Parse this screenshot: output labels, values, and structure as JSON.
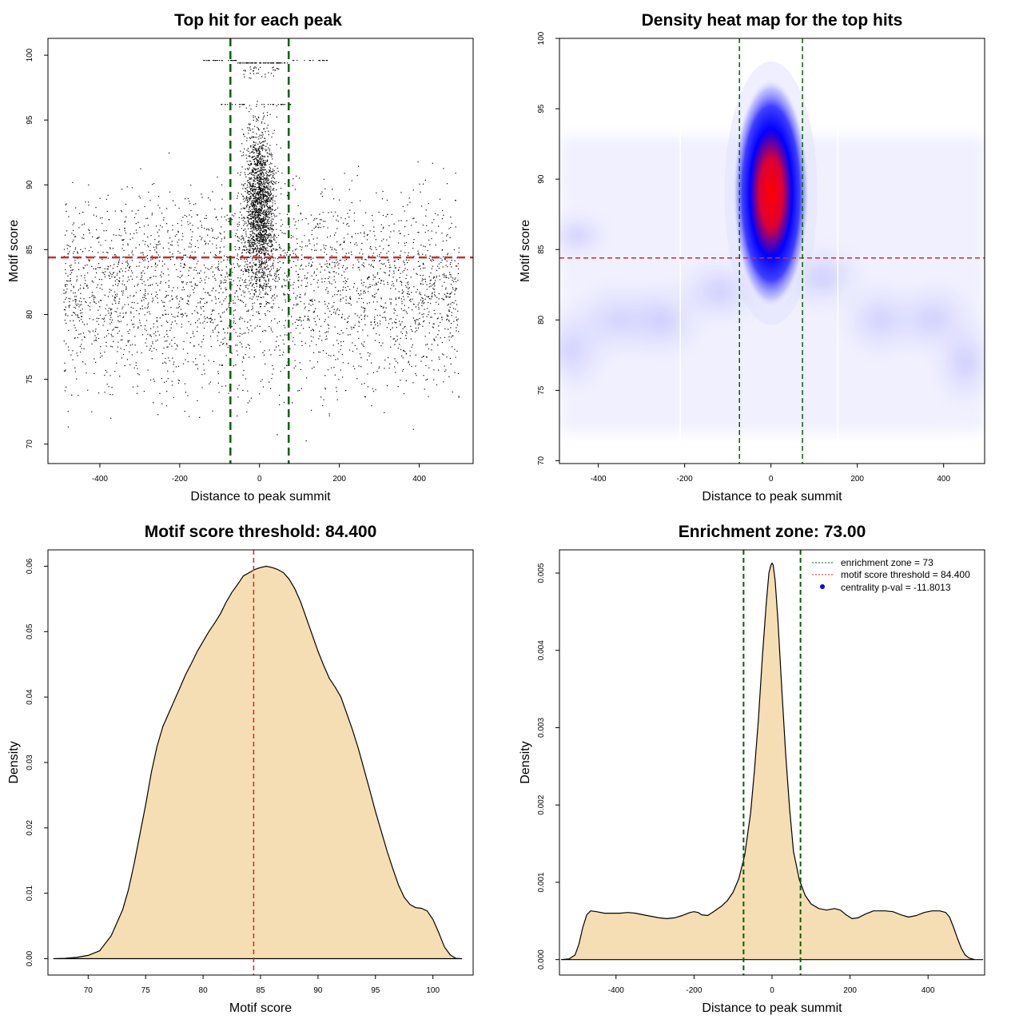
{
  "colors": {
    "threshold_red": "#d62728",
    "zone_green": "#006400",
    "density_fill": "#f5deb3",
    "heat_low": "#ffffff",
    "heat_mid": "#0000ff",
    "heat_high": "#ff0000",
    "points": "#000000",
    "centrality_dot": "#0000ff"
  },
  "chart_data": [
    {
      "type": "scatter",
      "title": "Top hit for each peak",
      "xlabel": "Distance to peak summit",
      "ylabel": "Motif score",
      "xlim": [
        -530,
        535
      ],
      "ylim": [
        68.5,
        101.3
      ],
      "xticks": [
        -400,
        -200,
        0,
        200,
        400
      ],
      "yticks": [
        70,
        75,
        80,
        85,
        90,
        95,
        100
      ],
      "x_range_of_points": [
        -490,
        500
      ],
      "hline": 84.4,
      "vlines": [
        -73,
        73
      ],
      "description_of_points": "about 5000 top hits; dense cluster centered at x=0 (|x|<70) with scores 80-100, elsewhere roughly uniform in x across -490..500 with scores mostly 72-92",
      "grid": false,
      "legend": "none"
    },
    {
      "type": "heatmap",
      "title": "Density heat map for the top hits",
      "xlabel": "Distance to peak summit",
      "ylabel": "Motif score",
      "xlim": [
        -490,
        495
      ],
      "ylim": [
        69.8,
        100
      ],
      "xticks": [
        -400,
        -200,
        0,
        200,
        400
      ],
      "yticks": [
        70,
        75,
        80,
        85,
        90,
        95,
        100
      ],
      "hline": 84.4,
      "vlines": [
        -73,
        73
      ],
      "peak": {
        "x": 0,
        "y": 89
      },
      "colorscale": [
        "white",
        "blue",
        "red"
      ],
      "grid": false,
      "legend": "none"
    },
    {
      "type": "area",
      "title": "Motif score threshold: 84.400",
      "xlabel": "Motif score",
      "ylabel": "Density",
      "xlim": [
        66.5,
        103.5
      ],
      "ylim": [
        -0.0025,
        0.0625
      ],
      "xticks": [
        70,
        75,
        80,
        85,
        90,
        95,
        100
      ],
      "yticks": [
        0.0,
        0.01,
        0.02,
        0.03,
        0.04,
        0.05,
        0.06
      ],
      "ytick_labels": [
        "0.00",
        "0.01",
        "0.02",
        "0.03",
        "0.04",
        "0.05",
        "0.06"
      ],
      "vline": 84.4,
      "x": [
        67,
        68,
        69,
        70,
        71,
        72,
        73,
        73.5,
        74,
        74.5,
        75,
        75.5,
        76,
        76.5,
        77,
        77.5,
        78,
        78.5,
        79,
        79.5,
        80,
        80.5,
        81,
        81.5,
        82,
        82.5,
        83,
        83.5,
        84,
        84.5,
        85,
        85.5,
        86,
        86.5,
        87,
        87.5,
        88,
        88.5,
        89,
        89.5,
        90,
        90.5,
        91,
        91.5,
        92,
        92.5,
        93,
        93.5,
        94,
        94.5,
        95,
        95.5,
        96,
        96.5,
        97,
        97.5,
        98,
        98.5,
        99,
        99.5,
        100,
        100.5,
        101,
        101.5,
        102,
        102.5
      ],
      "y": [
        0.0,
        5e-05,
        0.0002,
        0.0005,
        0.0012,
        0.0035,
        0.0075,
        0.0105,
        0.0145,
        0.019,
        0.0235,
        0.0285,
        0.0325,
        0.0355,
        0.0375,
        0.0395,
        0.0415,
        0.0435,
        0.0452,
        0.047,
        0.0485,
        0.05,
        0.0513,
        0.0527,
        0.0545,
        0.056,
        0.0572,
        0.0585,
        0.059,
        0.0595,
        0.0598,
        0.06,
        0.0598,
        0.0595,
        0.059,
        0.058,
        0.0565,
        0.0545,
        0.052,
        0.0495,
        0.047,
        0.0448,
        0.0428,
        0.0415,
        0.04,
        0.0375,
        0.035,
        0.0322,
        0.029,
        0.0258,
        0.0225,
        0.0195,
        0.0165,
        0.0138,
        0.0113,
        0.0094,
        0.0083,
        0.0078,
        0.0077,
        0.0073,
        0.006,
        0.004,
        0.0018,
        0.0006,
        5e-05,
        0.0
      ],
      "grid": false,
      "legend": "none"
    },
    {
      "type": "area",
      "title": "Enrichment zone: 73.00",
      "xlabel": "Distance to peak summit",
      "ylabel": "Density",
      "xlim": [
        -545,
        545
      ],
      "ylim": [
        -0.0002,
        0.0053
      ],
      "xticks": [
        -400,
        -200,
        0,
        200,
        400
      ],
      "yticks": [
        0.0,
        0.001,
        0.002,
        0.003,
        0.004,
        0.005
      ],
      "ytick_labels": [
        "0.000",
        "0.001",
        "0.002",
        "0.003",
        "0.004",
        "0.005"
      ],
      "vlines": [
        -73,
        73
      ],
      "x": [
        -540,
        -520,
        -505,
        -495,
        -485,
        -475,
        -465,
        -450,
        -430,
        -410,
        -390,
        -370,
        -350,
        -330,
        -310,
        -290,
        -270,
        -250,
        -230,
        -210,
        -200,
        -190,
        -180,
        -165,
        -150,
        -130,
        -115,
        -100,
        -85,
        -70,
        -55,
        -45,
        -35,
        -25,
        -15,
        -8,
        -3,
        0,
        3,
        8,
        15,
        25,
        35,
        45,
        55,
        70,
        85,
        100,
        120,
        140,
        160,
        175,
        190,
        205,
        220,
        240,
        260,
        275,
        290,
        310,
        330,
        350,
        370,
        390,
        410,
        430,
        445,
        455,
        465,
        475,
        485,
        495,
        505,
        520,
        540
      ],
      "y": [
        0.0,
        1e-05,
        6e-05,
        0.0002,
        0.00042,
        0.00058,
        0.00063,
        0.00062,
        0.0006,
        0.0006,
        0.0006,
        0.00061,
        0.0006,
        0.00058,
        0.00056,
        0.00054,
        0.00053,
        0.00054,
        0.00057,
        0.00061,
        0.00062,
        0.00061,
        0.00058,
        0.00057,
        0.00062,
        0.00069,
        0.00076,
        0.00087,
        0.00105,
        0.00135,
        0.0019,
        0.00245,
        0.0031,
        0.0039,
        0.0046,
        0.005,
        0.0051,
        0.00513,
        0.0051,
        0.0049,
        0.0044,
        0.0035,
        0.00265,
        0.00195,
        0.0014,
        0.00103,
        0.00083,
        0.00072,
        0.00066,
        0.00064,
        0.00066,
        0.00064,
        0.00058,
        0.00053,
        0.00054,
        0.00059,
        0.00063,
        0.00063,
        0.00063,
        0.00062,
        0.00058,
        0.00055,
        0.00057,
        0.00061,
        0.00063,
        0.00063,
        0.00061,
        0.00055,
        0.00042,
        0.00028,
        0.00015,
        6e-05,
        2e-05,
        0.0,
        0.0
      ],
      "legend": {
        "placement": "top-right",
        "entries": [
          {
            "label": "enrichment zone = 73",
            "style": "dotted-line",
            "color": "#006400"
          },
          {
            "label": "motif score threshold = 84.400",
            "style": "dotted-line",
            "color": "#d62728"
          },
          {
            "label": "centrality p-val = -11.8013",
            "style": "dot",
            "color": "#0000ff"
          }
        ]
      },
      "grid": false
    }
  ]
}
